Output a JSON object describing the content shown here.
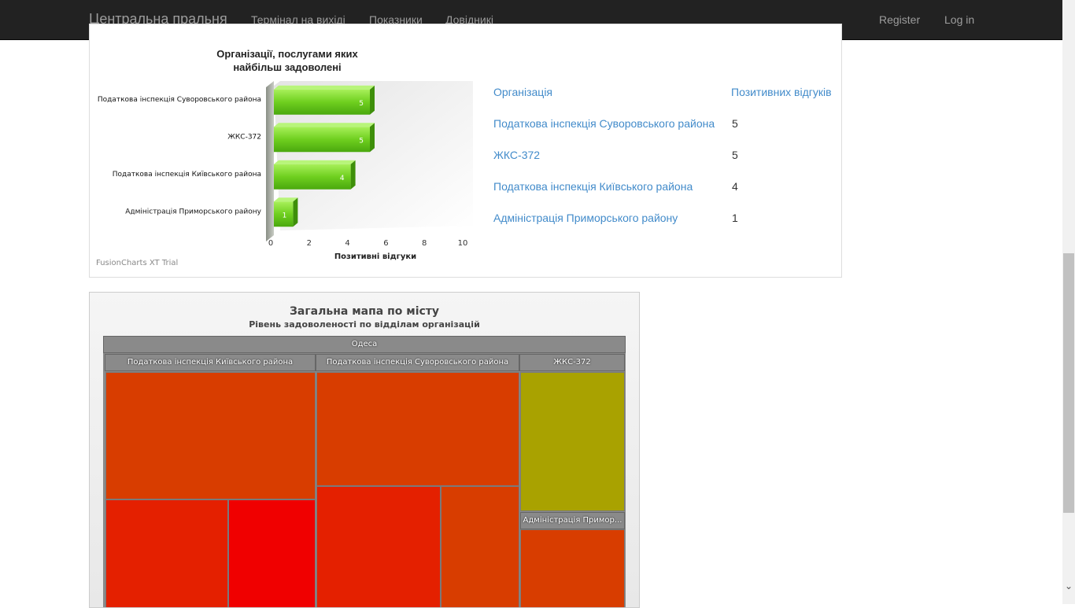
{
  "navbar": {
    "brand": "Центральна пральня",
    "links": [
      "Термінал на вихіді",
      "Показники",
      "Довідникі"
    ],
    "register": "Register",
    "login": "Log in"
  },
  "chart_data": [
    {
      "type": "bar",
      "orientation": "horizontal",
      "title": "Організації, послугами яких найбільш задоволені",
      "title_lines": [
        "Організації, послугами яких",
        "найбільш задоволені"
      ],
      "categories": [
        "Податкова інспекція Суворовського района",
        "ЖКС-372",
        "Податкова інспекція Київського района",
        "Адміністрація Приморського району"
      ],
      "values": [
        5,
        5,
        4,
        1
      ],
      "xlabel": "Позитивні відгуки",
      "xlim": [
        0,
        10
      ],
      "ticks": [
        "0",
        "2",
        "4",
        "6",
        "8",
        "10"
      ],
      "bar_color": "#6fcf1f",
      "trial_label": "FusionCharts XT Trial"
    },
    {
      "type": "treemap",
      "title": "Загальна мапа по місту",
      "subtitle": "Рівень задоволеності по відділам організацій",
      "root": "Одеса",
      "groups": [
        "Податкова інспекція Київського района",
        "Податкова інспекція Суворовського района",
        "ЖКС-372",
        "Адміністрація Примор..."
      ],
      "colors": [
        "#d83d00",
        "#e42000",
        "#f00000",
        "#a9a200"
      ]
    }
  ],
  "table": {
    "headers": [
      "Організація",
      "Позитивних відгуків"
    ],
    "rows": [
      {
        "org": "Податкова інспекція Суворовського района",
        "count": "5"
      },
      {
        "org": "ЖКС-372",
        "count": "5"
      },
      {
        "org": "Податкова інспекція Київського района",
        "count": "4"
      },
      {
        "org": "Адміністрація Приморського району",
        "count": "1"
      }
    ]
  }
}
